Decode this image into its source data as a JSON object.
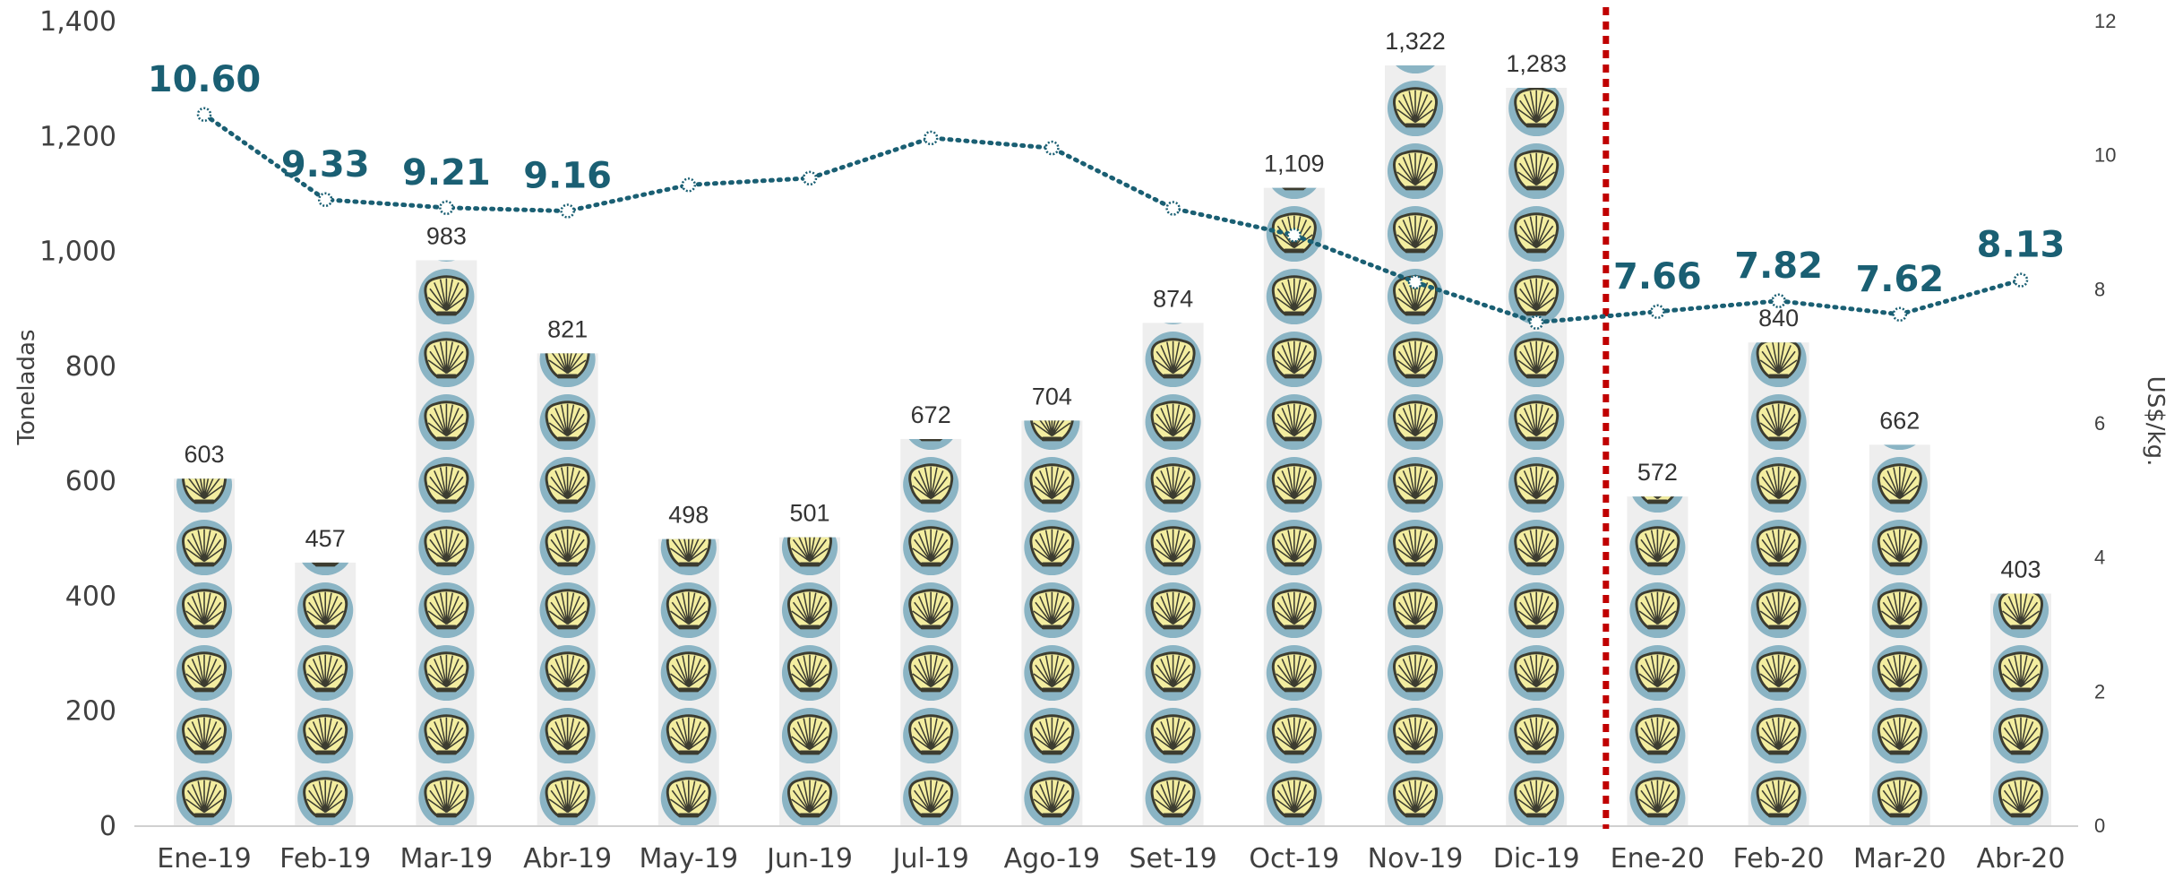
{
  "chart_data": {
    "type": "bar",
    "categories": [
      "Ene-19",
      "Feb-19",
      "Mar-19",
      "Abr-19",
      "May-19",
      "Jun-19",
      "Jul-19",
      "Ago-19",
      "Set-19",
      "Oct-19",
      "Nov-19",
      "Dic-19",
      "Ene-20",
      "Feb-20",
      "Mar-20",
      "Abr-20"
    ],
    "series": [
      {
        "type": "bar",
        "axis": "left",
        "values": [
          603,
          457,
          983,
          821,
          498,
          501,
          672,
          704,
          874,
          1109,
          1322,
          1283,
          572,
          840,
          662,
          403
        ],
        "value_labels": [
          "603",
          "457",
          "983",
          "821",
          "498",
          "501",
          "672",
          "704",
          "874",
          "1,109",
          "1,322",
          "1,283",
          "572",
          "840",
          "662",
          "403"
        ]
      },
      {
        "type": "line",
        "axis": "right",
        "values": [
          10.6,
          9.33,
          9.21,
          9.16,
          9.55,
          9.65,
          10.25,
          10.1,
          9.2,
          8.8,
          8.1,
          7.5,
          7.66,
          7.82,
          7.62,
          8.13
        ],
        "point_labels": [
          "10.60",
          "9.33",
          "9.21",
          "9.16",
          "",
          "",
          "",
          "",
          "",
          "",
          "",
          "",
          "7.66",
          "7.82",
          "7.62",
          "8.13"
        ]
      }
    ],
    "ylabel": "Toneladas",
    "y2label": "US$/kg.",
    "ylim": [
      0,
      1400
    ],
    "y2lim": [
      0,
      12
    ],
    "yticks": [
      "0",
      "200",
      "400",
      "600",
      "800",
      "1,000",
      "1,200",
      "1,400"
    ],
    "y2ticks": [
      "0",
      "2",
      "4",
      "6",
      "8",
      "10",
      "12"
    ],
    "divider_between": [
      "Dic-19",
      "Ene-20"
    ],
    "grid": false,
    "legend": "none"
  },
  "colors": {
    "shell_body": "#f3eda0",
    "shell_ring": "#8ab4c4",
    "shell_ridge": "#3c3c30",
    "bar_bg": "#eeeeee",
    "line": "#1a5f73",
    "price_label": "#1a5f73",
    "divider": "#c00000",
    "axis_text": "#404040"
  },
  "icons": {
    "bar_fill": "scallop-shell-icon"
  }
}
